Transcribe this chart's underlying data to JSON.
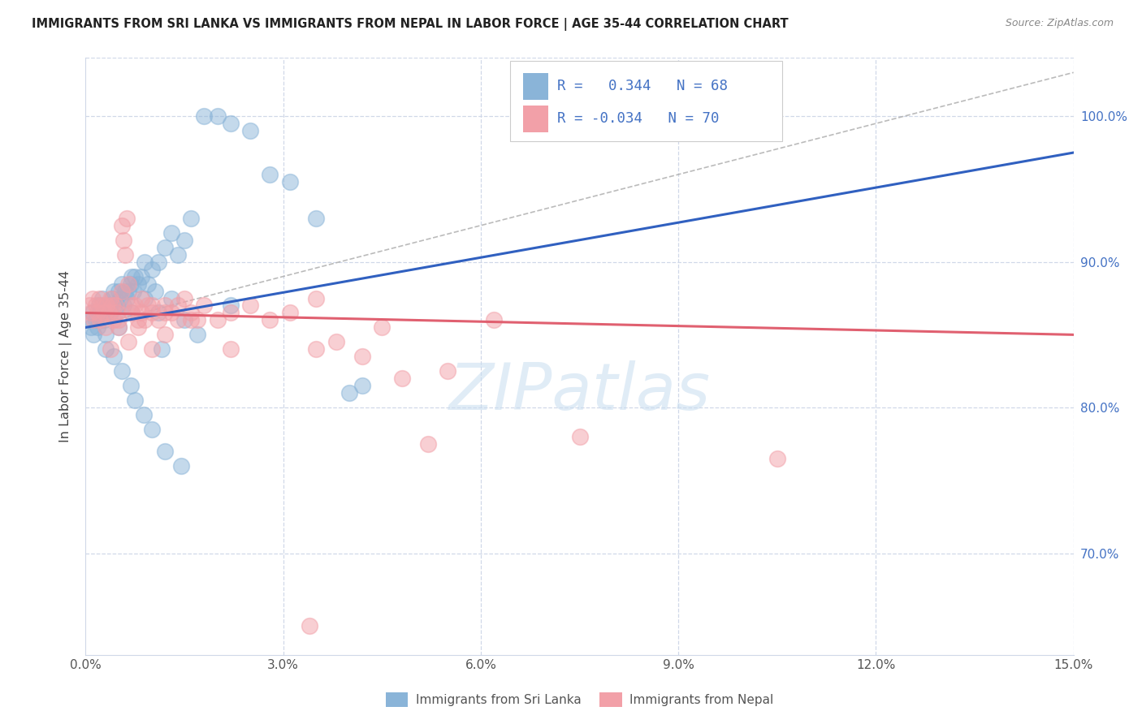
{
  "title": "IMMIGRANTS FROM SRI LANKA VS IMMIGRANTS FROM NEPAL IN LABOR FORCE | AGE 35-44 CORRELATION CHART",
  "source": "Source: ZipAtlas.com",
  "ylabel": "In Labor Force | Age 35-44",
  "xlim": [
    0.0,
    15.0
  ],
  "ylim": [
    63.0,
    104.0
  ],
  "R_sri_lanka": 0.344,
  "N_sri_lanka": 68,
  "R_nepal": -0.034,
  "N_nepal": 70,
  "sri_lanka_color": "#8ab4d8",
  "nepal_color": "#f2a0a8",
  "sri_lanka_line_color": "#3060c0",
  "nepal_line_color": "#e06070",
  "grid_color": "#d0d8e8",
  "watermark_color": "#c8ddf0",
  "sl_line_x0": 0.0,
  "sl_line_y0": 85.5,
  "sl_line_x1": 15.0,
  "sl_line_y1": 97.5,
  "np_line_x0": 0.0,
  "np_line_y0": 86.5,
  "np_line_x1": 15.0,
  "np_line_y1": 85.0,
  "dashed_x0": 0.0,
  "dashed_y0": 85.5,
  "dashed_x1": 15.0,
  "dashed_y1": 103.0,
  "sri_lanka_x": [
    0.05,
    0.08,
    0.1,
    0.12,
    0.15,
    0.18,
    0.2,
    0.22,
    0.25,
    0.28,
    0.3,
    0.32,
    0.35,
    0.38,
    0.4,
    0.42,
    0.45,
    0.48,
    0.5,
    0.52,
    0.55,
    0.58,
    0.6,
    0.62,
    0.65,
    0.68,
    0.7,
    0.72,
    0.75,
    0.8,
    0.85,
    0.9,
    0.95,
    1.0,
    1.05,
    1.1,
    1.2,
    1.3,
    1.4,
    1.5,
    1.6,
    1.8,
    2.0,
    2.2,
    2.5,
    2.8,
    3.1,
    3.5,
    4.0,
    4.2,
    1.15,
    0.42,
    0.55,
    0.68,
    0.75,
    0.88,
    1.0,
    1.2,
    1.45,
    0.3,
    0.5,
    0.7,
    0.9,
    1.1,
    1.3,
    1.5,
    1.7,
    2.2
  ],
  "sri_lanka_y": [
    86.0,
    85.5,
    86.5,
    85.0,
    86.0,
    85.5,
    87.0,
    86.5,
    87.5,
    86.0,
    85.0,
    86.5,
    87.0,
    86.5,
    87.5,
    88.0,
    86.5,
    87.0,
    88.0,
    87.5,
    88.5,
    87.0,
    88.0,
    87.5,
    88.0,
    88.5,
    89.0,
    88.0,
    89.0,
    88.5,
    89.0,
    90.0,
    88.5,
    89.5,
    88.0,
    90.0,
    91.0,
    92.0,
    90.5,
    91.5,
    93.0,
    100.0,
    100.0,
    99.5,
    99.0,
    96.0,
    95.5,
    93.0,
    81.0,
    81.5,
    84.0,
    83.5,
    82.5,
    81.5,
    80.5,
    79.5,
    78.5,
    77.0,
    76.0,
    84.0,
    85.5,
    86.5,
    87.5,
    86.5,
    87.5,
    86.0,
    85.0,
    87.0
  ],
  "nepal_x": [
    0.05,
    0.08,
    0.1,
    0.12,
    0.15,
    0.18,
    0.2,
    0.22,
    0.25,
    0.28,
    0.3,
    0.32,
    0.35,
    0.38,
    0.4,
    0.42,
    0.45,
    0.48,
    0.5,
    0.55,
    0.58,
    0.6,
    0.62,
    0.65,
    0.7,
    0.75,
    0.8,
    0.85,
    0.9,
    0.95,
    1.0,
    1.1,
    1.2,
    1.3,
    1.4,
    1.5,
    1.6,
    1.7,
    1.8,
    2.0,
    2.2,
    2.5,
    2.8,
    3.1,
    3.5,
    3.8,
    4.2,
    4.8,
    5.5,
    6.2,
    0.55,
    0.7,
    0.85,
    1.0,
    1.2,
    1.4,
    1.6,
    0.38,
    0.5,
    0.65,
    0.8,
    1.0,
    1.2,
    3.5,
    4.5,
    5.2,
    7.5,
    10.5,
    3.4,
    2.2
  ],
  "nepal_y": [
    87.0,
    86.5,
    87.5,
    86.0,
    87.0,
    86.5,
    87.5,
    86.0,
    87.0,
    86.5,
    85.5,
    87.0,
    86.5,
    87.5,
    87.0,
    86.0,
    87.0,
    86.5,
    86.0,
    92.5,
    91.5,
    90.5,
    93.0,
    88.5,
    86.5,
    87.0,
    86.0,
    87.5,
    86.0,
    87.0,
    86.5,
    86.0,
    87.0,
    86.5,
    86.0,
    87.5,
    86.5,
    86.0,
    87.0,
    86.0,
    86.5,
    87.0,
    86.0,
    86.5,
    84.0,
    84.5,
    83.5,
    82.0,
    82.5,
    86.0,
    88.0,
    87.0,
    86.5,
    87.0,
    86.5,
    87.0,
    86.0,
    84.0,
    85.5,
    84.5,
    85.5,
    84.0,
    85.0,
    87.5,
    85.5,
    77.5,
    78.0,
    76.5,
    65.0,
    84.0
  ]
}
